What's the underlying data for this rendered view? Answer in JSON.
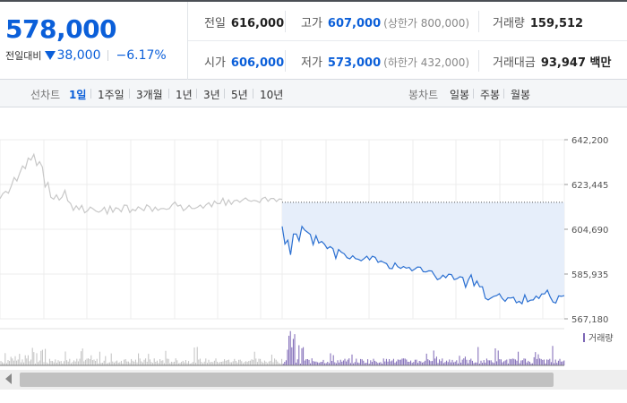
{
  "header": {
    "price": "578,000",
    "change_label": "전일대비",
    "change_value": "38,000",
    "change_pct": "−6.17%",
    "stats": {
      "prev_close": {
        "label": "전일",
        "value": "616,000"
      },
      "high": {
        "label": "고가",
        "value": "607,000",
        "limit_label": "(상한가 800,000)"
      },
      "volume": {
        "label": "거래량",
        "value": "159,512"
      },
      "open": {
        "label": "시가",
        "value": "606,000"
      },
      "low": {
        "label": "저가",
        "value": "573,000",
        "limit_label": "(하한가 432,000)"
      },
      "amount": {
        "label": "거래대금",
        "value": "93,947 백만"
      }
    }
  },
  "tabs": {
    "line_label": "선차트",
    "line_tabs": [
      "1일",
      "1주일",
      "3개월",
      "1년",
      "3년",
      "5년",
      "10년"
    ],
    "selected": "1일",
    "candle_label": "봉차트",
    "candle_tabs": [
      "일봉",
      "주봉",
      "월봉"
    ]
  },
  "colors": {
    "accent_blue": "#0b5fd9",
    "prev_line": "#c8c8c8",
    "today_line": "#2a6fd1",
    "today_fill": "#e6eefa",
    "volume_bar": "#7c66b5",
    "prev_volume_bar": "#c0c0c0"
  },
  "chart_data": {
    "type": "line",
    "y_ticks": [
      "642,200",
      "623,445",
      "604,690",
      "585,935",
      "567,180"
    ],
    "ylim": [
      567180,
      642200
    ],
    "prev_close_line": 616000,
    "series": [
      {
        "x": [
          0,
          2,
          4,
          6,
          8,
          10,
          12,
          14,
          16,
          18,
          20,
          22,
          24,
          26,
          28,
          30,
          32,
          34,
          36,
          38,
          40,
          42,
          44,
          46,
          48,
          50,
          52,
          54,
          56,
          58,
          60,
          62,
          64,
          66,
          68,
          70,
          72,
          74,
          76,
          78,
          80,
          82,
          84,
          86,
          88,
          90,
          92,
          94,
          96,
          98,
          100,
          102,
          104,
          106,
          108,
          110,
          112,
          114,
          116,
          118,
          120,
          122,
          124,
          126,
          128,
          130,
          132,
          134,
          136,
          138,
          140,
          142,
          144,
          146,
          148,
          150,
          152,
          154,
          156,
          158,
          160,
          162,
          164,
          166,
          168,
          170,
          172,
          174,
          176,
          178,
          180,
          182,
          184,
          186,
          188,
          190,
          192,
          194,
          196,
          198,
          200
        ],
        "values": [
          617500,
          619600,
          620600,
          619800,
          622800,
          626400,
          624900,
          628300,
          631200,
          630100,
          634500,
          633700,
          636100,
          631400,
          633000,
          630800,
          622400,
          624300,
          618100,
          617300,
          619100,
          616900,
          618200,
          621000,
          616600,
          615500,
          612600,
          614500,
          612900,
          614700,
          611600,
          612400,
          614000,
          613200,
          612300,
          611800,
          612500,
          613900,
          611100,
          614400,
          611800,
          613700,
          613300,
          612000,
          614800,
          614700,
          611700,
          613000,
          612400,
          614100,
          613300,
          612500,
          614900,
          614100,
          612200,
          614000,
          612600,
          613300,
          613400,
          613000,
          613300,
          615000,
          616100,
          614400,
          614800,
          612500,
          613400,
          614700,
          613400,
          613400,
          613900,
          614800,
          613500,
          614900,
          615800,
          614100,
          616500,
          615400,
          615400,
          617700,
          614700,
          617000,
          615100,
          616600,
          616900,
          616000,
          617000,
          617800,
          616800,
          616400,
          616800,
          616500,
          615900,
          617600,
          618100,
          616400,
          617600,
          617600,
          616300,
          617400,
          617200
        ]
      },
      {
        "x": [
          0,
          2,
          4,
          6,
          8,
          10,
          12,
          14,
          16,
          18,
          20,
          22,
          24,
          26,
          28,
          30,
          32,
          34,
          36,
          38,
          40,
          42,
          44,
          46,
          48,
          50,
          52,
          54,
          56,
          58,
          60,
          62,
          64,
          66,
          68,
          70,
          72,
          74,
          76,
          78,
          80,
          82,
          84,
          86,
          88,
          90,
          92,
          94,
          96,
          98,
          100,
          102,
          104,
          106,
          108,
          110,
          112,
          114,
          116,
          118,
          120,
          122,
          124,
          126,
          128,
          130,
          132,
          134,
          136,
          138,
          140,
          142,
          144,
          146,
          148,
          150,
          152,
          154,
          156,
          158,
          160,
          162,
          164,
          166,
          168,
          170,
          172,
          174,
          176,
          178,
          180,
          182,
          184,
          186,
          188,
          190,
          192,
          194,
          196,
          198,
          200
        ],
        "values": [
          605900,
          598500,
          600100,
          594000,
          602700,
          602700,
          599800,
          605900,
          604300,
          603400,
          602500,
          598200,
          602000,
          598900,
          599600,
          598400,
          596600,
          597400,
          596600,
          592500,
          596200,
          595100,
          594400,
          592800,
          592300,
          593600,
          592400,
          592100,
          591500,
          592400,
          593400,
          591900,
          593400,
          592900,
          590800,
          591400,
          590800,
          590300,
          588300,
          588200,
          590600,
          589000,
          588300,
          589100,
          588400,
          588700,
          587300,
          588000,
          588900,
          588800,
          586900,
          586800,
          587300,
          587200,
          585400,
          583600,
          584100,
          585500,
          584400,
          585900,
          585700,
          583600,
          584000,
          584800,
          584500,
          580400,
          583500,
          585600,
          581000,
          583000,
          580600,
          580600,
          575800,
          575100,
          575900,
          576600,
          576900,
          577700,
          575700,
          574500,
          576000,
          575900,
          576200,
          573900,
          574500,
          573500,
          577200,
          574300,
          575000,
          575100,
          576700,
          575700,
          577600,
          577600,
          579200,
          576300,
          574200,
          573800,
          576800,
          576600,
          576900
        ]
      }
    ]
  }
}
